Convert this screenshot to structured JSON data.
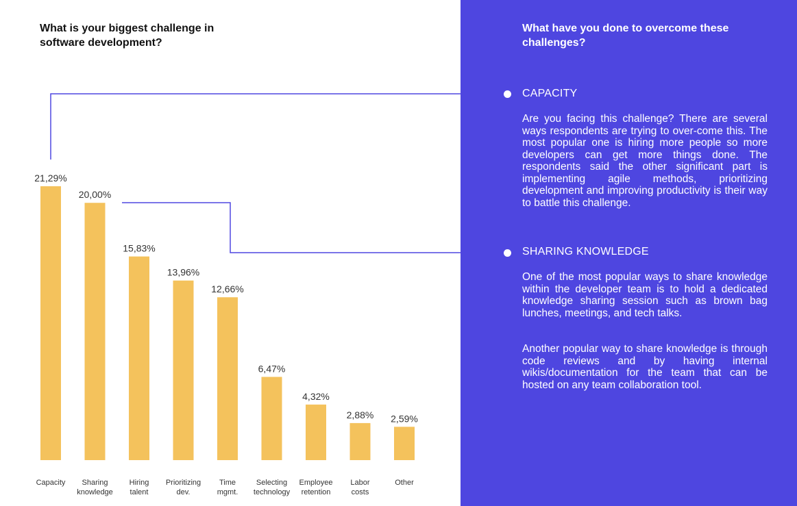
{
  "left_panel": {
    "title": "What is your biggest challenge in software development?"
  },
  "right_panel": {
    "title": "What have you done to overcome these challenges?",
    "sections": [
      {
        "heading": "CAPACITY",
        "paragraphs": [
          "Are you facing this challenge? There are several ways respondents are trying to over-come this. The most popular one is hiring more people so more developers can get more things done. The respondents said the other significant part is implementing agile methods, prioritizing development and improving productivity is their way to battle this challenge."
        ]
      },
      {
        "heading": "SHARING KNOWLEDGE",
        "paragraphs": [
          "One of the most popular ways to share knowledge within the developer team is to hold a dedicated knowledge sharing session such as brown bag lunches, meetings, and tech talks.",
          "Another popular way to share knowledge is through code reviews and by having internal wikis/documentation for the team that can be hosted on any team collaboration tool."
        ]
      }
    ]
  },
  "colors": {
    "bar": "#f4c25c",
    "panel": "#4e46e0",
    "connector": "#4e46e0",
    "text": "#333333"
  },
  "chart_data": {
    "type": "bar",
    "title": "What is your biggest challenge in software development?",
    "categories": [
      [
        "Capacity"
      ],
      [
        "Sharing",
        "knowledge"
      ],
      [
        "Hiring",
        "talent"
      ],
      [
        "Prioritizing",
        "dev."
      ],
      [
        "Time",
        "mgmt."
      ],
      [
        "Selecting",
        "technology"
      ],
      [
        "Employee",
        "retention"
      ],
      [
        "Labor",
        "costs"
      ],
      [
        "Other"
      ]
    ],
    "values": [
      21.29,
      20.0,
      15.83,
      13.96,
      12.66,
      6.47,
      4.32,
      2.88,
      2.59
    ],
    "value_labels": [
      "21,29%",
      "20,00%",
      "15,83%",
      "13,96%",
      "12,66%",
      "6,47%",
      "4,32%",
      "2,88%",
      "2,59%"
    ],
    "unit": "%",
    "xlabel": "",
    "ylabel": "",
    "grid": false,
    "legend": false
  }
}
